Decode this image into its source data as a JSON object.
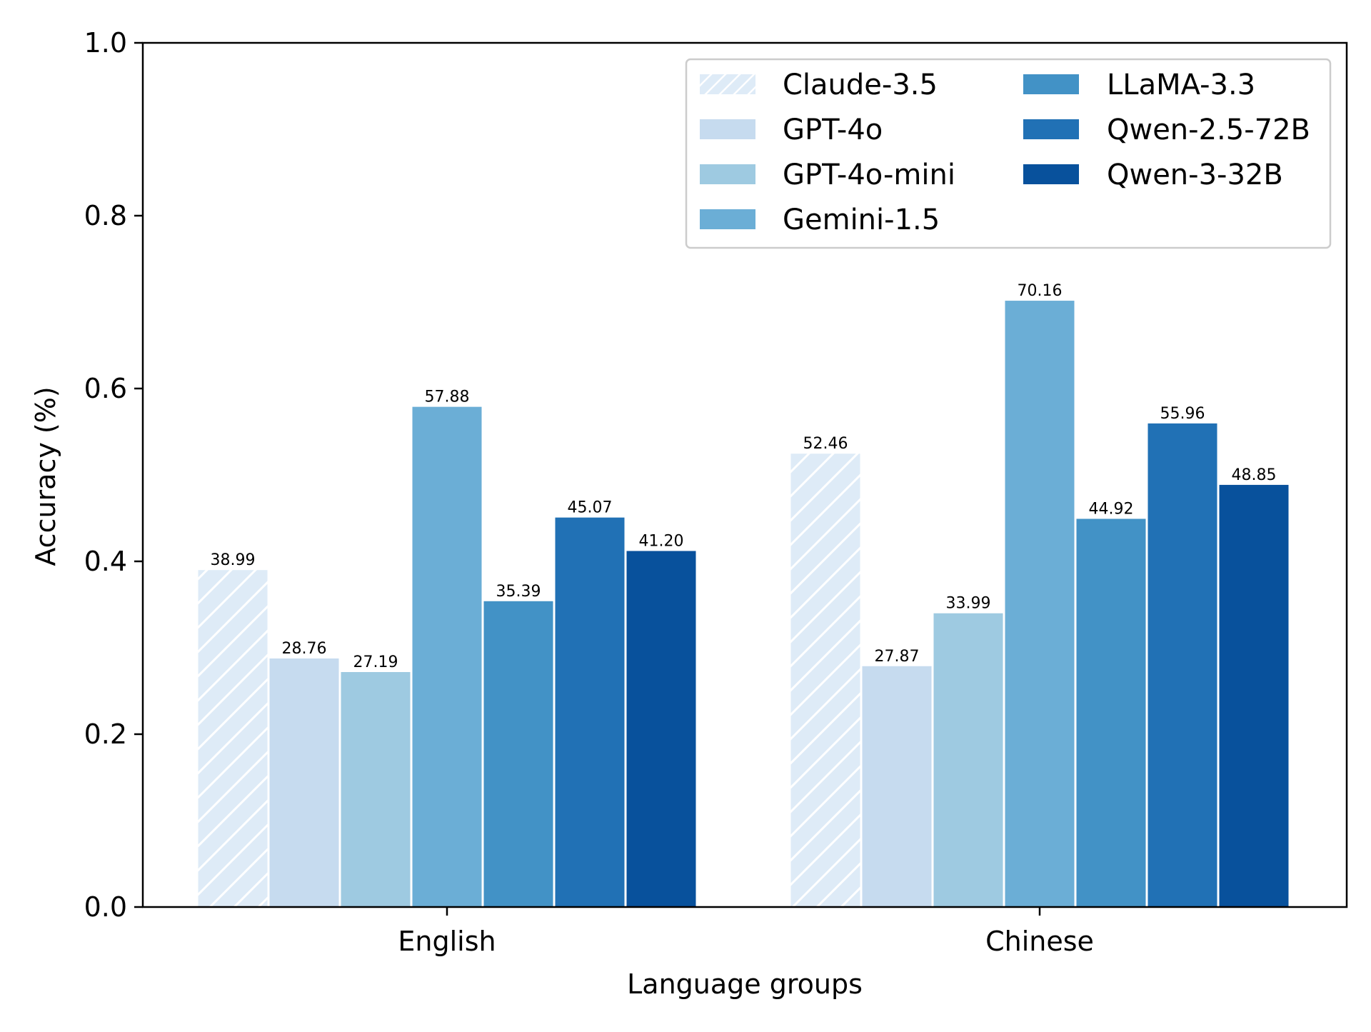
{
  "chart_data": {
    "type": "bar",
    "title": "",
    "xlabel": "Language groups",
    "ylabel": "Accuracy (%)",
    "ylim": [
      0,
      1.0
    ],
    "yticks": [
      0.0,
      0.2,
      0.4,
      0.6,
      0.8,
      1.0
    ],
    "ytick_labels": [
      "0.0",
      "0.2",
      "0.4",
      "0.6",
      "0.8",
      "1.0"
    ],
    "categories": [
      "English",
      "Chinese"
    ],
    "grid": false,
    "legend_position": "top-right",
    "series": [
      {
        "name": "Claude-3.5",
        "color": "#deebf7",
        "hatch": true,
        "values": [
          0.3899,
          0.5246
        ],
        "labels": [
          "38.99",
          "52.46"
        ]
      },
      {
        "name": "GPT-4o",
        "color": "#c6dbef",
        "hatch": false,
        "values": [
          0.2876,
          0.2787
        ],
        "labels": [
          "28.76",
          "27.87"
        ]
      },
      {
        "name": "GPT-4o-mini",
        "color": "#9ecae1",
        "hatch": false,
        "values": [
          0.2719,
          0.3399
        ],
        "labels": [
          "27.19",
          "33.99"
        ]
      },
      {
        "name": "Gemini-1.5",
        "color": "#6baed6",
        "hatch": false,
        "values": [
          0.5788,
          0.7016
        ],
        "labels": [
          "57.88",
          "70.16"
        ]
      },
      {
        "name": "LLaMA-3.3",
        "color": "#4292c6",
        "hatch": false,
        "values": [
          0.3539,
          0.4492
        ],
        "labels": [
          "35.39",
          "44.92"
        ]
      },
      {
        "name": "Qwen-2.5-72B",
        "color": "#2171b5",
        "hatch": false,
        "values": [
          0.4507,
          0.5596
        ],
        "labels": [
          "45.07",
          "55.96"
        ]
      },
      {
        "name": "Qwen-3-32B",
        "color": "#08519c",
        "hatch": false,
        "values": [
          0.412,
          0.4885
        ],
        "labels": [
          "41.20",
          "48.85"
        ]
      }
    ]
  }
}
